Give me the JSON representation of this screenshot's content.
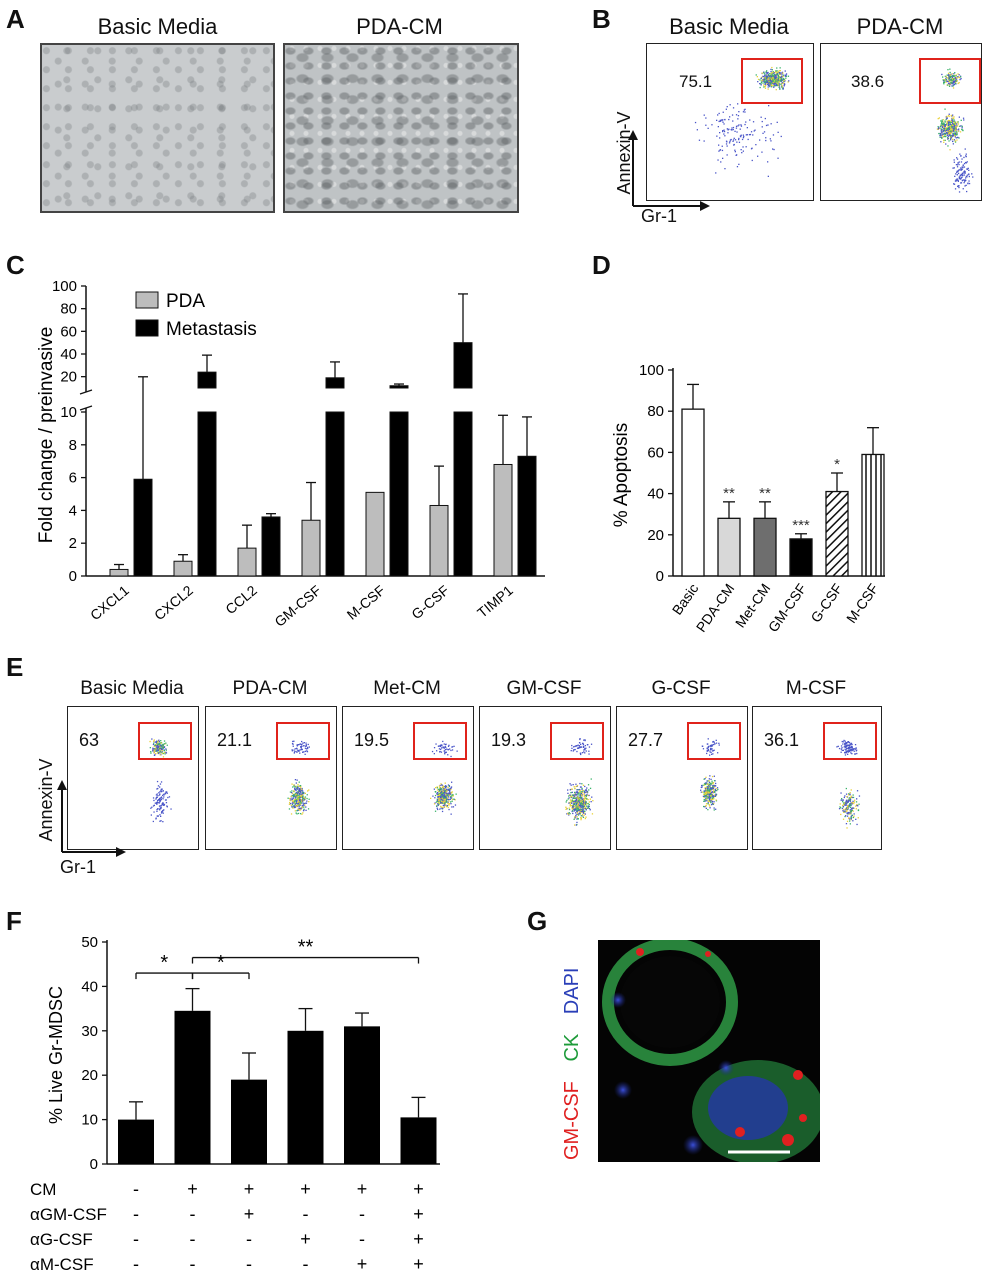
{
  "panels": {
    "A": {
      "letter": "A",
      "images": [
        {
          "label": "Basic Media"
        },
        {
          "label": "PDA-CM"
        }
      ]
    },
    "B": {
      "letter": "B",
      "plots": [
        {
          "label": "Basic Media",
          "gate_value": "75.1"
        },
        {
          "label": "PDA-CM",
          "gate_value": "38.6"
        }
      ],
      "y_axis": "Annexin-V",
      "x_axis": "Gr-1"
    },
    "E": {
      "letter": "E",
      "plots": [
        {
          "label": "Basic Media",
          "gate_value": "63"
        },
        {
          "label": "PDA-CM",
          "gate_value": "21.1"
        },
        {
          "label": "Met-CM",
          "gate_value": "19.5"
        },
        {
          "label": "GM-CSF",
          "gate_value": "19.3"
        },
        {
          "label": "G-CSF",
          "gate_value": "27.7"
        },
        {
          "label": "M-CSF",
          "gate_value": "36.1"
        }
      ],
      "y_axis": "Annexin-V",
      "x_axis": "Gr-1"
    },
    "G": {
      "letter": "G",
      "stains": [
        {
          "label": "GM-CSF",
          "color": "#e02020"
        },
        {
          "label": "CK",
          "color": "#1e9b3a"
        },
        {
          "label": "DAPI",
          "color": "#2a3fb8"
        }
      ]
    }
  },
  "chart_data": [
    {
      "panel": "C",
      "letter": "C",
      "type": "bar",
      "ylabel": "Fold change / preinvasive",
      "categories": [
        "CXCL1",
        "CXCL2",
        "CCL2",
        "GM-CSF",
        "M-CSF",
        "G-CSF",
        "TIMP1"
      ],
      "y_lower_ticks": [
        "0",
        "2",
        "4",
        "6",
        "8",
        "10"
      ],
      "y_upper_ticks": [
        "20",
        "40",
        "60",
        "80",
        "100"
      ],
      "ylim_lower": [
        0,
        10
      ],
      "ylim_upper": [
        10,
        100
      ],
      "series": [
        {
          "name": "PDA",
          "color": "#bdbdbd",
          "values": [
            0.4,
            0.9,
            1.7,
            3.4,
            5.1,
            4.3,
            6.8
          ],
          "errors": [
            0.3,
            0.4,
            1.4,
            2.3,
            0,
            2.4,
            3.0
          ]
        },
        {
          "name": "Metastasis",
          "color": "#000000",
          "values": [
            5.9,
            24,
            3.6,
            19,
            12,
            50,
            7.3
          ],
          "errors": [
            14,
            15,
            0.2,
            14,
            1.5,
            43,
            2.4
          ]
        }
      ],
      "legend_position": "top-left"
    },
    {
      "panel": "D",
      "letter": "D",
      "type": "bar",
      "ylabel": "% Apoptosis",
      "categories": [
        "Basic",
        "PDA-CM",
        "Met-CM",
        "GM-CSF",
        "G-CSF",
        "M-CSF"
      ],
      "y_ticks": [
        "0",
        "20",
        "40",
        "60",
        "80",
        "100"
      ],
      "ylim": [
        0,
        100
      ],
      "values": [
        81,
        28,
        28,
        18,
        41,
        59
      ],
      "errors": [
        12,
        8,
        8,
        2.5,
        9,
        13
      ],
      "fills": [
        "white",
        "#d8d8d8",
        "#6e6e6e",
        "#000000",
        "hatch",
        "vstripe"
      ],
      "significance": [
        "",
        "**",
        "**",
        "***",
        "*",
        ""
      ]
    },
    {
      "panel": "F",
      "letter": "F",
      "type": "bar",
      "ylabel": "% Live Gr-MDSC",
      "categories": [
        "1",
        "2",
        "3",
        "4",
        "5",
        "6"
      ],
      "y_ticks": [
        "0",
        "10",
        "20",
        "30",
        "40",
        "50"
      ],
      "ylim": [
        0,
        50
      ],
      "values": [
        10,
        34.5,
        19,
        30,
        31,
        10.5
      ],
      "errors": [
        4,
        5,
        6,
        5,
        3,
        4.5
      ],
      "treatment_rows": [
        {
          "label": "CM",
          "marks": [
            "-",
            "+",
            "+",
            "+",
            "+",
            "+"
          ]
        },
        {
          "label": "αGM-CSF",
          "marks": [
            "-",
            "-",
            "+",
            "-",
            "-",
            "+"
          ]
        },
        {
          "label": "αG-CSF",
          "marks": [
            "-",
            "-",
            "-",
            "+",
            "-",
            "+"
          ]
        },
        {
          "label": "αM-CSF",
          "marks": [
            "-",
            "-",
            "-",
            "-",
            "+",
            "+"
          ]
        }
      ],
      "comparisons": [
        {
          "from": 0,
          "to": 1,
          "label": "*"
        },
        {
          "from": 1,
          "to": 2,
          "label": "*"
        },
        {
          "from": 1,
          "to": 5,
          "label": "**"
        }
      ]
    }
  ]
}
